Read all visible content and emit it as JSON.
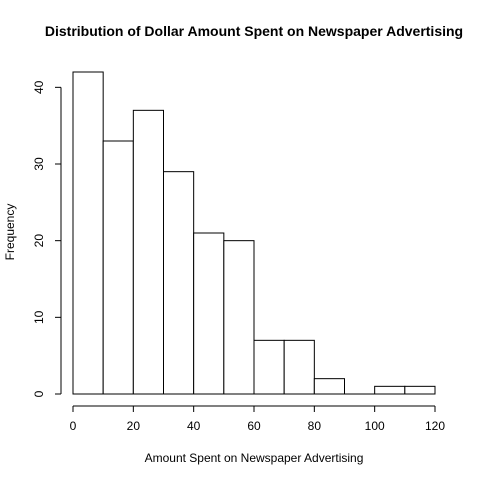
{
  "chart_data": {
    "type": "bar",
    "title": "Distribution of Dollar Amount Spent on Newspaper Advertising",
    "xlabel": "Amount Spent on Newspaper Advertising",
    "ylabel": "Frequency",
    "bin_edges": [
      0,
      10,
      20,
      30,
      40,
      50,
      60,
      70,
      80,
      90,
      100,
      110,
      120
    ],
    "values": [
      42,
      33,
      37,
      29,
      21,
      20,
      7,
      7,
      2,
      0,
      1,
      1
    ],
    "xlim": [
      0,
      120
    ],
    "ylim": [
      0,
      42
    ],
    "x_ticks": [
      0,
      20,
      40,
      60,
      80,
      100,
      120
    ],
    "y_ticks": [
      0,
      10,
      20,
      30,
      40
    ],
    "grid": false,
    "legend": "none",
    "bar_fill": "#ffffff",
    "bar_stroke": "#000000"
  }
}
